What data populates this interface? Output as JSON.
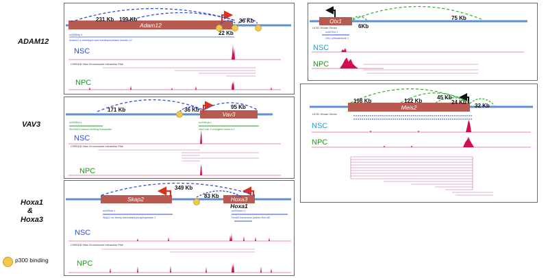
{
  "left_labels": {
    "adam12": "ADAM12",
    "vav3": "VAV3",
    "hoxa_line1": "Hoxa1",
    "hoxa_amp": "&",
    "hoxa_line2": "Hoxa3"
  },
  "legend": {
    "label": "p300 binding"
  },
  "colors": {
    "gene_box": "#b85a50",
    "arrow_red": "#e03020",
    "loop_blue": "#2e4bdc",
    "loop_green": "#2eb82e",
    "chrom_line": "#5b8fd8",
    "nsc_blue": "#2e4bdc",
    "nsc_cyan": "#20a0d0",
    "npc_green": "#1a9a1a",
    "signal": "#d0104a",
    "pets": "#c060a0"
  },
  "adam12": {
    "gene": "Adam12",
    "d1": "231 Kb",
    "d2": "199 Kb",
    "d3": "22 Kb",
    "d4": "36 Kb",
    "track_ucsc": "uc009kbp.1",
    "track_desc": "Adam12 a disintegrin and metallopeptidase domain 12",
    "nsc": "NSC",
    "npc": "NPC",
    "pets_title": "CHR0430 Intra-Chromosome Interaction Pets"
  },
  "vav3": {
    "gene": "Vav3",
    "d1": "171 Kb",
    "d2": "36 Kb",
    "d3": "95 Kb",
    "track1": "uc009fbd.1",
    "track1_desc": "Slc25a24 calcium-binding transporter",
    "track2": "uc008rqb.1",
    "track2_desc": "Vav3 vav 3 oncogene isoform 1",
    "nsc": "NSC",
    "npc": "NPC",
    "pets_title": "CHR0430 Intra-Chromosome Interaction Pets"
  },
  "hoxa": {
    "gene1": "Skap2",
    "gene2": "Hoxa3",
    "sub": "Hoxa1",
    "d1": "349 Kb",
    "d2": "83 Kb",
    "track1": "uc009azl.1",
    "track1_desc": "Skap2 src family associated phosphoprotein 2",
    "track2": "uc009azm.1",
    "track2_desc": "Hoxa3 homeobox protein Hox-A3",
    "nsc": "NSC",
    "npc": "NPC",
    "pets_title": "CHR0430 Intra-Chromosome Interaction Pets"
  },
  "otx1": {
    "gene": "Otx1",
    "d1": "6Kb",
    "d2": "75 Kb",
    "track_header": "UCSC Known Genes",
    "track1": "uc007ihx.1",
    "track1_desc": "Otx1 orthodenticle 1",
    "nsc": "NSC",
    "npc": "NPC"
  },
  "meis2": {
    "gene": "Meis2",
    "d1": "198 Kb",
    "d2": "122 Kb",
    "d3": "45 Kb",
    "d4": "24 Kb",
    "d5": "32 Kb",
    "track_header": "UCSC Known Genes",
    "nsc": "NSC",
    "npc": "NPC"
  }
}
